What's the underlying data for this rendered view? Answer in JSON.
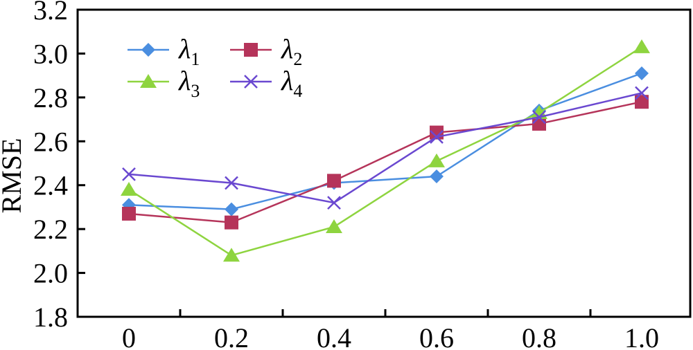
{
  "chart_data": {
    "type": "line",
    "title": "",
    "xlabel": "",
    "ylabel": "RMSE",
    "x": [
      0,
      0.2,
      0.4,
      0.6,
      0.8,
      1.0
    ],
    "x_tick_labels": [
      "0",
      "0.2",
      "0.4",
      "0.6",
      "0.8",
      "1.0"
    ],
    "y_ticks": [
      1.8,
      2.0,
      2.2,
      2.4,
      2.6,
      2.8,
      3.0,
      3.2
    ],
    "y_tick_labels": [
      "1.8",
      "2.0",
      "2.2",
      "2.4",
      "2.6",
      "2.8",
      "3.0",
      "3.2"
    ],
    "ylim": [
      1.8,
      3.2
    ],
    "grid": false,
    "legend_position": "top-left",
    "series": [
      {
        "name": "λ",
        "subscript": "1",
        "color": "#4a8ee0",
        "marker": "diamond",
        "values": [
          2.31,
          2.29,
          2.41,
          2.44,
          2.74,
          2.91
        ]
      },
      {
        "name": "λ",
        "subscript": "2",
        "color": "#b5345a",
        "marker": "square",
        "values": [
          2.27,
          2.23,
          2.42,
          2.64,
          2.68,
          2.78
        ]
      },
      {
        "name": "λ",
        "subscript": "3",
        "color": "#8ed43f",
        "marker": "triangle",
        "values": [
          2.38,
          2.08,
          2.21,
          2.51,
          2.73,
          3.03
        ]
      },
      {
        "name": "λ",
        "subscript": "4",
        "color": "#6a48d0",
        "marker": "cross",
        "values": [
          2.45,
          2.41,
          2.32,
          2.62,
          2.71,
          2.82
        ]
      }
    ]
  }
}
